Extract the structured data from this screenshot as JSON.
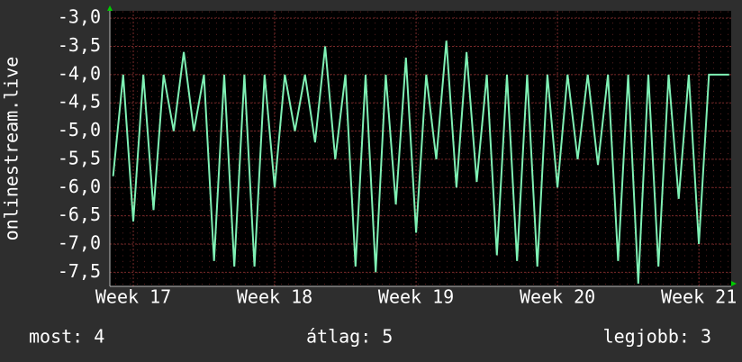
{
  "chart_data": {
    "type": "line",
    "y_label": "onlinestream.live",
    "x": [
      -1,
      -0.5,
      0,
      0.5,
      1,
      1.5,
      2,
      2.5,
      3,
      3.5,
      4,
      4.5,
      5,
      5.5,
      6,
      6.5,
      7,
      7.5,
      8,
      8.5,
      9,
      9.5,
      10,
      10.5,
      11,
      11.5,
      12,
      12.5,
      13,
      13.5,
      14,
      14.5,
      15,
      15.5,
      16,
      16.5,
      17,
      17.5,
      18,
      18.5,
      19,
      19.5,
      20,
      20.5,
      21,
      21.5,
      22,
      22.5,
      23,
      23.5,
      24,
      24.5,
      25,
      25.5,
      26,
      26.5,
      27,
      27.5,
      28,
      28.5,
      29,
      29.5
    ],
    "series": [
      {
        "color": "#7ff0b4",
        "values": [
          -5.8,
          -4.0,
          -6.6,
          -4.0,
          -6.4,
          -4.0,
          -5.0,
          -3.6,
          -5.0,
          -4.0,
          -7.3,
          -4.0,
          -7.4,
          -4.0,
          -7.4,
          -4.0,
          -6.0,
          -4.0,
          -5.0,
          -4.0,
          -5.2,
          -3.5,
          -5.5,
          -4.0,
          -7.4,
          -4.0,
          -7.5,
          -4.0,
          -6.3,
          -3.7,
          -6.8,
          -4.0,
          -5.5,
          -3.4,
          -6.0,
          -3.6,
          -5.9,
          -4.0,
          -7.2,
          -4.0,
          -7.3,
          -4.0,
          -7.4,
          -4.0,
          -6.0,
          -4.0,
          -5.5,
          -4.0,
          -5.6,
          -4.0,
          -7.3,
          -4.0,
          -7.7,
          -4.0,
          -7.4,
          -4.0,
          -6.2,
          -4.0,
          -7.0,
          -4.0,
          -4.0,
          -4.0
        ]
      }
    ],
    "xlim": [
      -1.16,
      29.6
    ],
    "xticks": [
      {
        "value": 0,
        "label": "Week 17"
      },
      {
        "value": 7,
        "label": "Week 18"
      },
      {
        "value": 14,
        "label": "Week 19"
      },
      {
        "value": 21,
        "label": "Week 20"
      },
      {
        "value": 28,
        "label": "Week 21"
      }
    ],
    "ylim": [
      -7.75,
      -2.87
    ],
    "yticks": [
      {
        "value": -3.0,
        "label": "-3,0"
      },
      {
        "value": -3.5,
        "label": "-3,5"
      },
      {
        "value": -4.0,
        "label": "-4,0"
      },
      {
        "value": -4.5,
        "label": "-4,5"
      },
      {
        "value": -5.0,
        "label": "-5,0"
      },
      {
        "value": -5.5,
        "label": "-5,5"
      },
      {
        "value": -6.0,
        "label": "-6,0"
      },
      {
        "value": -6.5,
        "label": "-6,5"
      },
      {
        "value": -7.0,
        "label": "-7,0"
      },
      {
        "value": -7.5,
        "label": "-7,5"
      }
    ],
    "grid": true,
    "footer": [
      "most: 4",
      "átlag: 5",
      "legjobb: 3"
    ]
  }
}
